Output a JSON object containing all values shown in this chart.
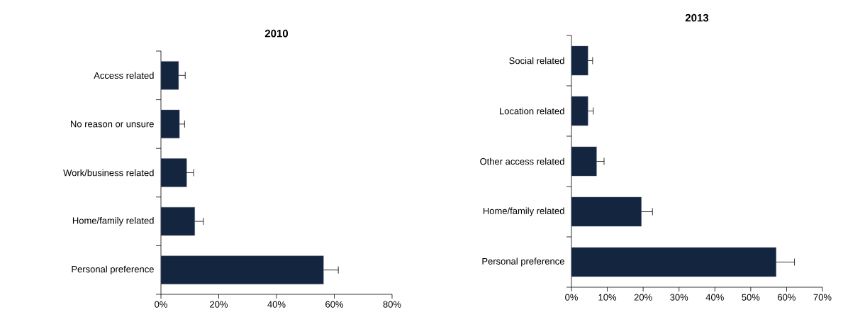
{
  "chart_data": [
    {
      "type": "bar",
      "orientation": "horizontal",
      "title": "2010",
      "categories": [
        "Access related",
        "No reason or unsure",
        "Work/business related",
        "Home/family related",
        "Personal preference"
      ],
      "values": [
        6.1,
        6.4,
        8.9,
        11.7,
        56.3
      ],
      "errors": [
        [
          6.1,
          8.4
        ],
        [
          6.4,
          8.2
        ],
        [
          8.9,
          11.3
        ],
        [
          11.7,
          14.7
        ],
        [
          56.3,
          61.4
        ]
      ],
      "color": "#13253f",
      "xlim": [
        0,
        80
      ],
      "xticks": [
        {
          "value": 0,
          "label": "0%"
        },
        {
          "value": 20,
          "label": "20%"
        },
        {
          "value": 40,
          "label": "40%"
        },
        {
          "value": 60,
          "label": "60%"
        },
        {
          "value": 80,
          "label": "80%"
        }
      ]
    },
    {
      "type": "bar",
      "orientation": "horizontal",
      "title": "2013",
      "categories": [
        "Social related",
        "Location related",
        "Other access related",
        "Home/family related",
        "Personal preference"
      ],
      "values": [
        4.6,
        4.6,
        7.0,
        19.5,
        57.1
      ],
      "errors": [
        [
          4.6,
          5.9
        ],
        [
          4.6,
          6.1
        ],
        [
          7.0,
          9.1
        ],
        [
          19.5,
          22.6
        ],
        [
          57.1,
          62.2
        ]
      ],
      "color": "#13253f",
      "xlim": [
        0,
        70
      ],
      "xticks": [
        {
          "value": 0,
          "label": "0%"
        },
        {
          "value": 10,
          "label": "10%"
        },
        {
          "value": 20,
          "label": "20%"
        },
        {
          "value": 30,
          "label": "30%"
        },
        {
          "value": 40,
          "label": "40%"
        },
        {
          "value": 50,
          "label": "50%"
        },
        {
          "value": 60,
          "label": "60%"
        },
        {
          "value": 70,
          "label": "70%"
        }
      ]
    }
  ]
}
